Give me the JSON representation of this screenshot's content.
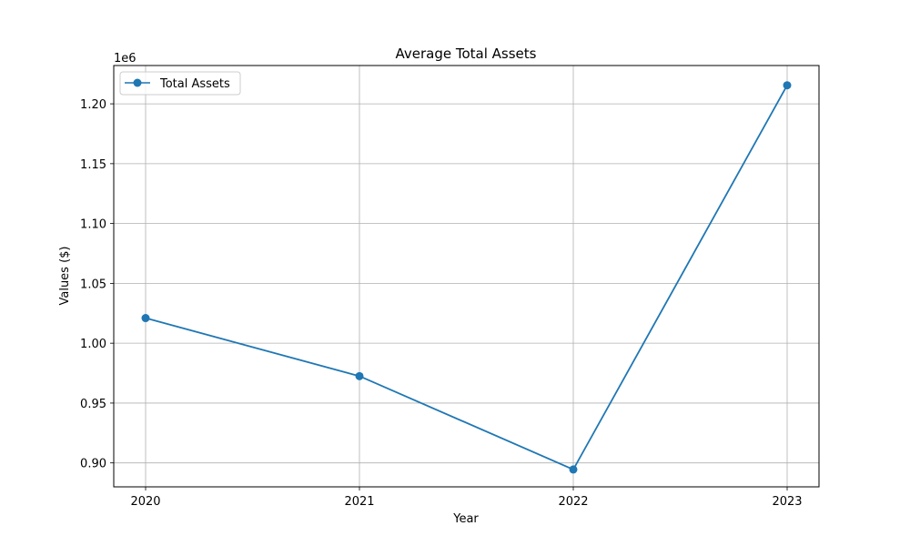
{
  "chart_data": {
    "type": "line",
    "title": "Average Total Assets",
    "xlabel": "Year",
    "ylabel": "Values ($)",
    "offset_label": "1e6",
    "categories": [
      "2020",
      "2021",
      "2022",
      "2023"
    ],
    "series": [
      {
        "name": "Total Assets",
        "color": "#1f77b4",
        "values": [
          1021000,
          972500,
          894500,
          1215500
        ]
      }
    ],
    "ylim": [
      880000,
      1232000
    ],
    "yticks": [
      {
        "value": 900000,
        "label": "0.90"
      },
      {
        "value": 950000,
        "label": "0.95"
      },
      {
        "value": 1000000,
        "label": "1.00"
      },
      {
        "value": 1050000,
        "label": "1.05"
      },
      {
        "value": 1100000,
        "label": "1.10"
      },
      {
        "value": 1150000,
        "label": "1.15"
      },
      {
        "value": 1200000,
        "label": "1.20"
      }
    ],
    "grid": true,
    "legend_position": "top-left"
  }
}
